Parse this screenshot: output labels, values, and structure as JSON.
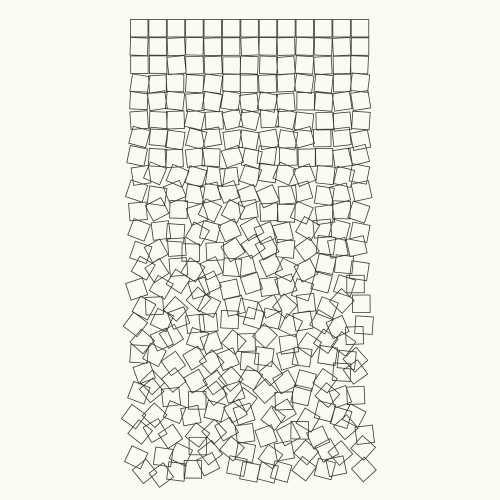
{
  "artwork": {
    "kind": "generative-square-grid",
    "columns": 13,
    "rows": 25,
    "disorder_increases_downward": true,
    "colors": {
      "background": "#fbfbf1",
      "stroke": "#3a3a3a"
    }
  }
}
